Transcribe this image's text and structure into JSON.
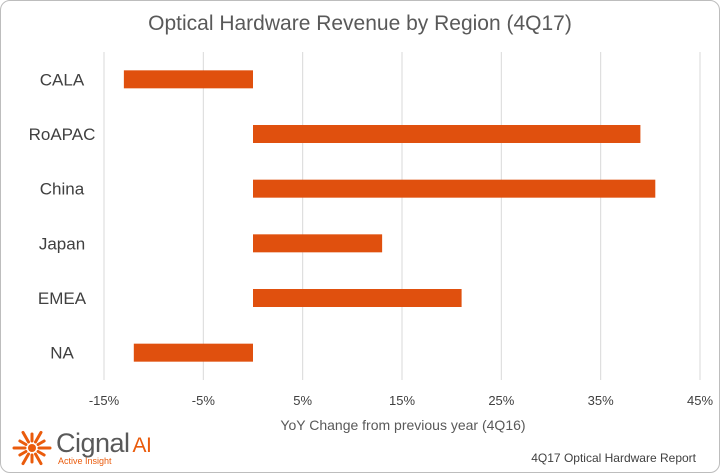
{
  "chart_data": {
    "type": "bar",
    "orientation": "horizontal",
    "title": "Optical Hardware Revenue by Region (4Q17)",
    "xlabel": "YoY Change from previous year (4Q16)",
    "ylabel": "",
    "categories": [
      "CALA",
      "RoAPAC",
      "China",
      "Japan",
      "EMEA",
      "NA"
    ],
    "values": [
      -13,
      39,
      40.5,
      13,
      21,
      -12
    ],
    "xlim": [
      -15,
      45
    ],
    "xticks": [
      -15,
      -5,
      5,
      15,
      25,
      35,
      45
    ],
    "xtick_labels": [
      "-15%",
      "-5%",
      "5%",
      "15%",
      "25%",
      "35%",
      "45%"
    ],
    "grid": "vertical",
    "color": "#e0500e"
  },
  "branding": {
    "logo_name": "Cignal",
    "logo_ai": "AI",
    "tagline": "Active Insight",
    "logo_color": "#ea5b0c"
  },
  "footer": {
    "report": "4Q17 Optical Hardware Report"
  }
}
